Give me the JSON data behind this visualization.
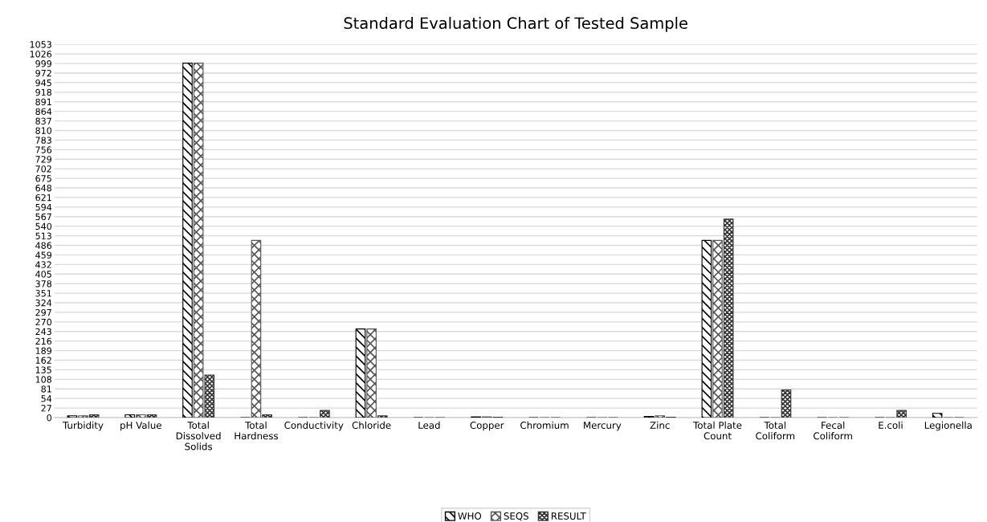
{
  "chart_data": {
    "type": "bar",
    "title": "Standard Evaluation Chart of Tested Sample",
    "categories": [
      "Turbidity",
      "pH Value",
      "Total\nDissolved\nSolids",
      "Total\nHardness",
      "Conductivity",
      "Chloride",
      "Lead",
      "Copper",
      "Chromium",
      "Mercury",
      "Zinc",
      "Total Plate\nCount",
      "Total\nColiform",
      "Fecal\nColiform",
      "E.coli",
      "Legionella"
    ],
    "series": [
      {
        "name": "WHO",
        "color": "#000000",
        "values": [
          5,
          8,
          1000,
          0,
          0,
          250,
          0,
          2,
          0,
          0,
          3,
          500,
          0,
          0,
          0,
          12
        ]
      },
      {
        "name": "SEQS",
        "color": "#555555",
        "values": [
          5,
          8,
          1000,
          500,
          0,
          250,
          0,
          2,
          0,
          0,
          5,
          500,
          0,
          0,
          0,
          0
        ]
      },
      {
        "name": "RESULT",
        "color": "#333333",
        "values": [
          8,
          8,
          120,
          8,
          20,
          5,
          0,
          1,
          0,
          0,
          1,
          560,
          78,
          0,
          20,
          0
        ]
      }
    ],
    "ylim": [
      0,
      1053
    ],
    "yticks": [
      0,
      27,
      54,
      81,
      108,
      135,
      162,
      189,
      216,
      243,
      270,
      297,
      324,
      351,
      378,
      405,
      432,
      459,
      486,
      513,
      540,
      567,
      594,
      621,
      648,
      675,
      702,
      729,
      756,
      783,
      810,
      837,
      864,
      891,
      918,
      945,
      972,
      999,
      1026,
      1053
    ],
    "grid": "y",
    "legend": "bottom"
  }
}
